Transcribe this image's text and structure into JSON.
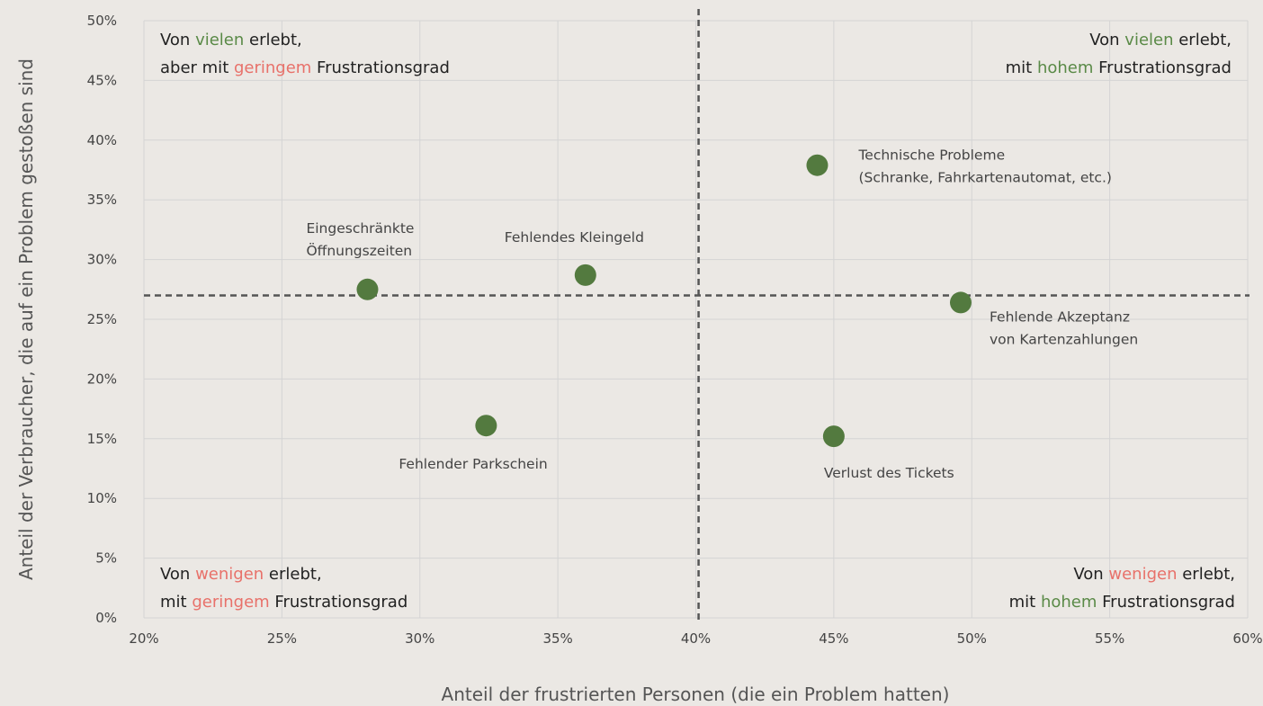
{
  "chart_data": {
    "type": "scatter",
    "x_label": "Anteil der frustrierten Personen (die ein Problem hatten)",
    "y_label": "Anteil der Verbraucher, die auf ein Problem gestoßen sind",
    "color": "#537a3f",
    "grid": true,
    "xlim": [
      20,
      60
    ],
    "ylim": [
      0,
      50
    ],
    "xticks": [
      {
        "value": 20,
        "label": "20%"
      },
      {
        "value": 25,
        "label": "25%"
      },
      {
        "value": 30,
        "label": "30%"
      },
      {
        "value": 35,
        "label": "35%"
      },
      {
        "value": 40,
        "label": "40%"
      },
      {
        "value": 45,
        "label": "45%"
      },
      {
        "value": 50,
        "label": "50%"
      },
      {
        "value": 55,
        "label": "55%"
      },
      {
        "value": 60,
        "label": "60%"
      }
    ],
    "yticks": [
      {
        "value": 0,
        "label": "0%"
      },
      {
        "value": 5,
        "label": "5%"
      },
      {
        "value": 10,
        "label": "10%"
      },
      {
        "value": 15,
        "label": "15%"
      },
      {
        "value": 20,
        "label": "20%"
      },
      {
        "value": 25,
        "label": "25%"
      },
      {
        "value": 30,
        "label": "30%"
      },
      {
        "value": 35,
        "label": "35%"
      },
      {
        "value": 40,
        "label": "40%"
      },
      {
        "value": 45,
        "label": "45%"
      },
      {
        "value": 50,
        "label": "50%"
      }
    ],
    "x": [
      44.4,
      28.1,
      36.0,
      49.6,
      32.4,
      45.0
    ],
    "values": [
      37.9,
      27.5,
      28.7,
      26.4,
      16.1,
      15.2
    ],
    "labels": [
      [
        "Technische Probleme",
        "(Schranke, Fahrkartenautomat, etc.)"
      ],
      [
        "Eingeschränkte",
        "Öffnungszeiten"
      ],
      [
        "Fehlendes Kleingeld"
      ],
      [
        "Fehlende Akzeptanz",
        "von Kartenzahlungen"
      ],
      [
        "Fehlender Parkschein"
      ],
      [
        "Verlust des Tickets"
      ]
    ],
    "reference_x": 40.1,
    "reference_y": 27,
    "quadrants": [
      {
        "corner": "top-left",
        "lines": [
          [
            {
              "text": "Von ",
              "color": "#222222"
            },
            {
              "text": "vielen",
              "color": "#5a8a47"
            },
            {
              "text": " erlebt,",
              "color": "#222222"
            }
          ],
          [
            {
              "text": "aber mit ",
              "color": "#222222"
            },
            {
              "text": "geringem",
              "color": "#e8716a"
            },
            {
              "text": " Frustrationsgrad",
              "color": "#222222"
            }
          ]
        ]
      },
      {
        "corner": "top-right",
        "lines": [
          [
            {
              "text": "Von ",
              "color": "#222222"
            },
            {
              "text": "vielen",
              "color": "#5a8a47"
            },
            {
              "text": " erlebt,",
              "color": "#222222"
            }
          ],
          [
            {
              "text": "mit ",
              "color": "#222222"
            },
            {
              "text": "hohem",
              "color": "#5a8a47"
            },
            {
              "text": " Frustrationsgrad",
              "color": "#222222"
            }
          ]
        ]
      },
      {
        "corner": "bottom-left",
        "lines": [
          [
            {
              "text": "Von ",
              "color": "#222222"
            },
            {
              "text": "wenigen",
              "color": "#e8716a"
            },
            {
              "text": " erlebt,",
              "color": "#222222"
            }
          ],
          [
            {
              "text": "mit ",
              "color": "#222222"
            },
            {
              "text": "geringem",
              "color": "#e8716a"
            },
            {
              "text": " Frustrationsgrad",
              "color": "#222222"
            }
          ]
        ]
      },
      {
        "corner": "bottom-right",
        "lines": [
          [
            {
              "text": "Von ",
              "color": "#222222"
            },
            {
              "text": "wenigen",
              "color": "#e8716a"
            },
            {
              "text": " erlebt,",
              "color": "#222222"
            }
          ],
          [
            {
              "text": "mit ",
              "color": "#222222"
            },
            {
              "text": "hohem",
              "color": "#5a8a47"
            },
            {
              "text": " Frustrationsgrad",
              "color": "#222222"
            }
          ]
        ]
      }
    ]
  }
}
